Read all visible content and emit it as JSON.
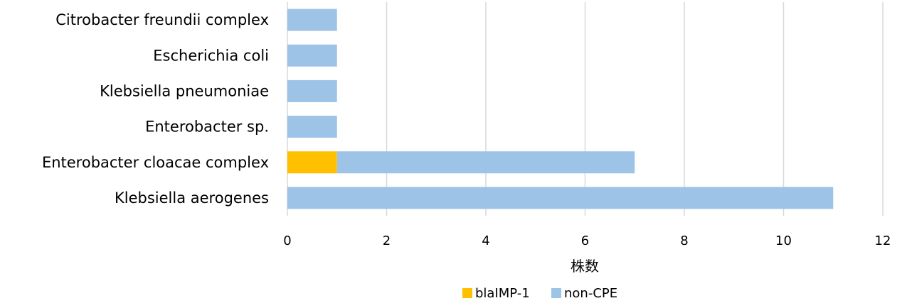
{
  "chart_data": {
    "type": "bar",
    "orientation": "horizontal",
    "stacked": true,
    "categories": [
      "Citrobacter freundii complex",
      "Escherichia coli",
      "Klebsiella pneumoniae",
      "Enterobacter sp.",
      "Enterobacter cloacae complex",
      "Klebsiella aerogenes"
    ],
    "series": [
      {
        "name": "blaIMP-1",
        "color": "#ffc000",
        "values": [
          0,
          0,
          0,
          0,
          1,
          0
        ]
      },
      {
        "name": "non-CPE",
        "color": "#9dc3e6",
        "values": [
          1,
          1,
          1,
          1,
          6,
          11
        ]
      }
    ],
    "title": "",
    "xlabel": "株数",
    "ylabel": "",
    "xlim": [
      0,
      12
    ],
    "xticks": [
      0,
      2,
      4,
      6,
      8,
      10,
      12
    ],
    "xtick_labels": [
      "0",
      "2",
      "4",
      "6",
      "8",
      "10",
      "12"
    ],
    "grid": "vertical",
    "legend": "bottom-center"
  }
}
